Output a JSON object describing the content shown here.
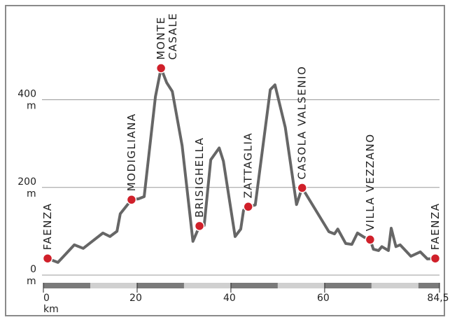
{
  "chart_data": {
    "type": "line",
    "x_unit": "km",
    "y_unit": "m",
    "xlim": [
      0,
      84.5
    ],
    "ylim": [
      0,
      610
    ],
    "xticks": [
      0,
      20,
      40,
      60,
      {
        "value": 84.5,
        "label": "84,5"
      }
    ],
    "yticks": [
      0,
      200,
      400
    ],
    "grid": true,
    "series": [
      {
        "color": "#666666",
        "x": [
          0.9,
          3.1,
          6.6,
          8.5,
          12.7,
          14.2,
          15.7,
          16.4,
          18.8,
          20.3,
          21.5,
          23.9,
          25.1,
          26.3,
          27.5,
          29.6,
          31.9,
          33.3,
          34.3,
          35.7,
          37.5,
          38.4,
          40.9,
          42.1,
          42.7,
          43.7,
          45.2,
          48.4,
          49.4,
          51.6,
          54.0,
          55.2,
          60.9,
          62.1,
          62.8,
          64.5,
          65.8,
          67.0,
          68.5,
          69.7,
          70.4,
          71.5,
          72.2,
          73.6,
          74.2,
          75.2,
          76.1,
          78.4,
          80.4,
          81.9,
          83.6
        ],
        "values": [
          38,
          29,
          69,
          61,
          96,
          88,
          100,
          140,
          172,
          174,
          179,
          407,
          472,
          439,
          419,
          295,
          77,
          112,
          113,
          263,
          290,
          260,
          88,
          105,
          148,
          156,
          160,
          423,
          434,
          337,
          161,
          199,
          99,
          94,
          105,
          72,
          70,
          96,
          86,
          81,
          59,
          56,
          65,
          56,
          107,
          65,
          69,
          43,
          53,
          37,
          38
        ]
      }
    ],
    "stops": [
      {
        "label": [
          "FAENZA"
        ],
        "x": 0.9,
        "y": 38
      },
      {
        "label": [
          "MODIGLIANA"
        ],
        "x": 18.8,
        "y": 172
      },
      {
        "label": [
          "MONTE",
          "CASALE"
        ],
        "x": 25.1,
        "y": 472
      },
      {
        "label": [
          "BRISIGHELLA"
        ],
        "x": 33.3,
        "y": 112
      },
      {
        "label": [
          "ZATTAGLIA"
        ],
        "x": 43.7,
        "y": 156
      },
      {
        "label": [
          "CASOLA VALSENIO"
        ],
        "x": 55.2,
        "y": 199
      },
      {
        "label": [
          "VILLA VEZZANO"
        ],
        "x": 69.7,
        "y": 81
      },
      {
        "label": [
          "FAENZA"
        ],
        "x": 83.6,
        "y": 38
      }
    ],
    "stop_color": "#d0202a"
  }
}
